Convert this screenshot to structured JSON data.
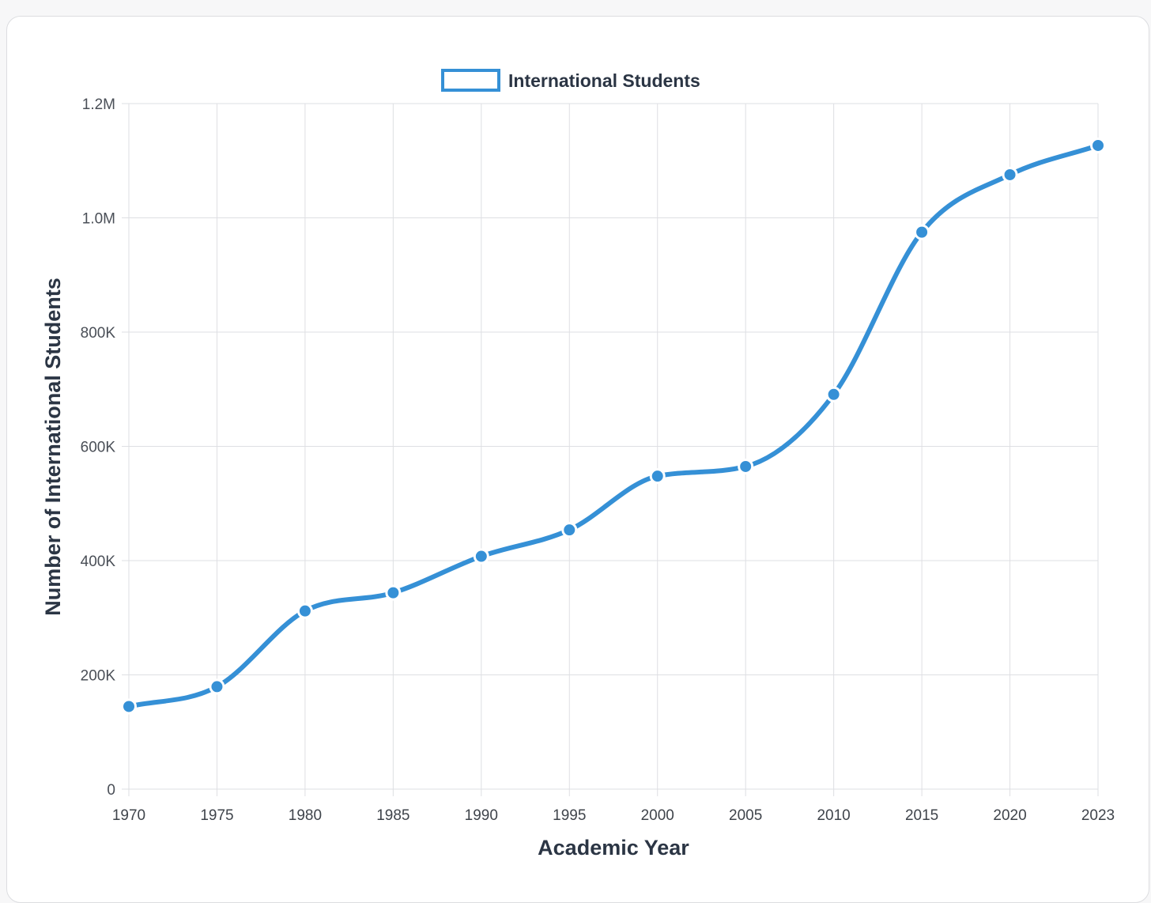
{
  "chart_data": {
    "type": "line",
    "title": "",
    "xlabel": "Academic Year",
    "ylabel": "Number of International Students",
    "categories": [
      "1970",
      "1975",
      "1980",
      "1985",
      "1990",
      "1995",
      "2000",
      "2005",
      "2010",
      "2015",
      "2020",
      "2023"
    ],
    "series": [
      {
        "name": "International Students",
        "color": "#3590d6",
        "values": [
          144708,
          179344,
          311882,
          343777,
          407529,
          453787,
          547867,
          564766,
          690923,
          974926,
          1075496,
          1126690
        ]
      }
    ],
    "ylim": [
      0,
      1200000
    ],
    "yticks": [
      {
        "value": 0,
        "label": "0"
      },
      {
        "value": 200000,
        "label": "200K"
      },
      {
        "value": 400000,
        "label": "400K"
      },
      {
        "value": 600000,
        "label": "600K"
      },
      {
        "value": 800000,
        "label": "800K"
      },
      {
        "value": 1000000,
        "label": "1.0M"
      },
      {
        "value": 1200000,
        "label": "1.2M"
      }
    ],
    "grid": true,
    "legend_position": "top-center"
  }
}
